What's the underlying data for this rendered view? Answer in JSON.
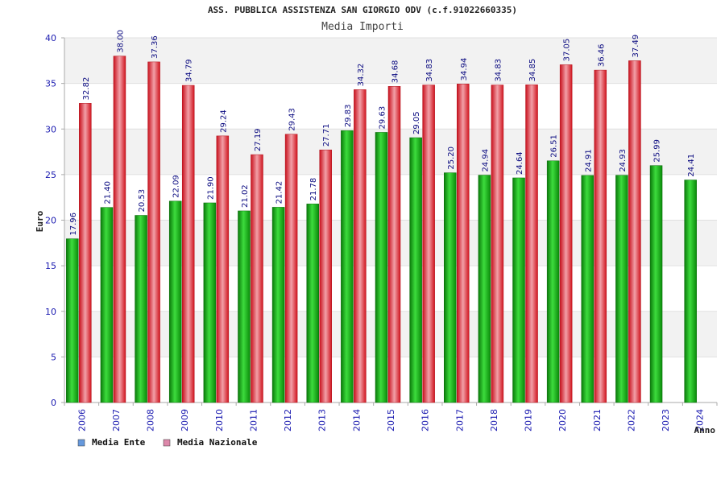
{
  "chart_data": {
    "type": "bar",
    "title": "ASS. PUBBLICA ASSISTENZA SAN GIORGIO ODV (c.f.91022660335)",
    "subtitle": "Media Importi",
    "xlabel": "Anno",
    "ylabel": "Euro",
    "ylim": [
      0,
      40
    ],
    "yticks": [
      0,
      5,
      10,
      15,
      20,
      25,
      30,
      35,
      40
    ],
    "grid": "banded",
    "legend_position": "bottom-left",
    "categories": [
      "2006",
      "2007",
      "2008",
      "2009",
      "2010",
      "2011",
      "2012",
      "2013",
      "2014",
      "2015",
      "2016",
      "2017",
      "2018",
      "2019",
      "2020",
      "2021",
      "2022",
      "2023",
      "2024"
    ],
    "series": [
      {
        "name": "Media Ente",
        "color": "#12b012",
        "legend_color": "#6699dd",
        "values": [
          17.96,
          21.4,
          20.53,
          22.09,
          21.9,
          21.02,
          21.42,
          21.78,
          29.83,
          29.63,
          29.05,
          25.2,
          24.94,
          24.64,
          26.51,
          24.91,
          24.93,
          25.99,
          24.41
        ],
        "labels": [
          "17.96",
          "21.40",
          "20.53",
          "22.09",
          "21.90",
          "21.02",
          "21.42",
          "21.78",
          "29.83",
          "29.63",
          "29.05",
          "25.20",
          "24.94",
          "24.64",
          "26.51",
          "24.91",
          "24.93",
          "25.99",
          "24.41"
        ]
      },
      {
        "name": "Media Nazionale",
        "color": "#e8202a",
        "legend_color": "#dd88aa",
        "values": [
          32.82,
          38.0,
          37.36,
          34.79,
          29.24,
          27.19,
          29.43,
          27.71,
          34.32,
          34.68,
          34.83,
          34.94,
          34.83,
          34.85,
          37.05,
          36.46,
          37.49,
          null,
          null
        ],
        "labels": [
          "32.82",
          "38.00",
          "37.36",
          "34.79",
          "29.24",
          "27.19",
          "29.43",
          "27.71",
          "34.32",
          "34.68",
          "34.83",
          "34.94",
          "34.83",
          "34.85",
          "37.05",
          "36.46",
          "37.49",
          null,
          null
        ]
      }
    ]
  }
}
